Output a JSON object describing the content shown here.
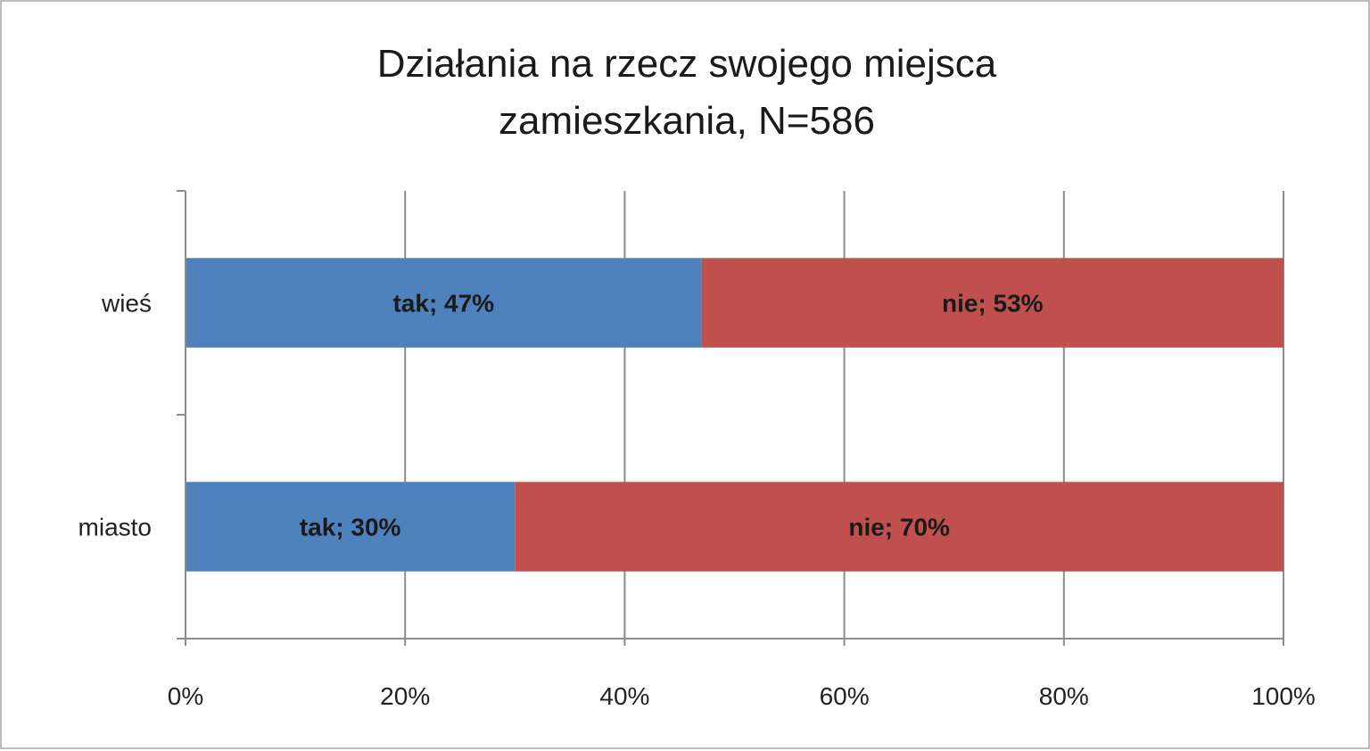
{
  "chart_data": {
    "type": "bar",
    "orientation": "horizontal",
    "stacked": true,
    "title": "Działania na rzecz swojego miejsca zamieszkania, N=586",
    "title_lines": [
      "Działania na rzecz swojego miejsca",
      "zamieszkania, N=586"
    ],
    "categories": [
      "wieś",
      "miasto"
    ],
    "series": [
      {
        "name": "tak",
        "values": [
          47,
          30
        ],
        "color": "#4f81bd"
      },
      {
        "name": "nie",
        "values": [
          53,
          70
        ],
        "color": "#c0504d"
      }
    ],
    "data_labels": [
      [
        "tak; 47%",
        "tak; 30%"
      ],
      [
        "nie; 53%",
        "nie; 70%"
      ]
    ],
    "x_ticks": [
      "0%",
      "20%",
      "40%",
      "60%",
      "80%",
      "100%"
    ],
    "xlim": [
      0,
      100
    ],
    "grid": true,
    "legend": "none"
  }
}
